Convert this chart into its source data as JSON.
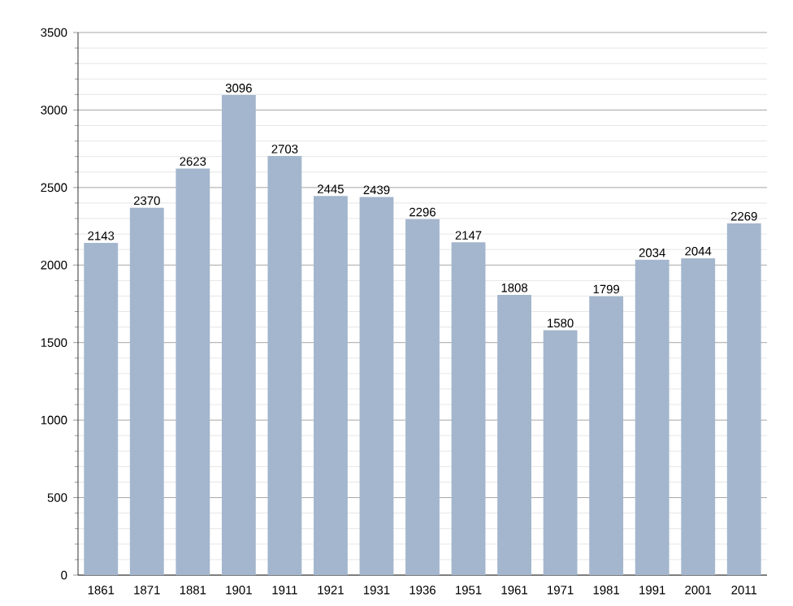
{
  "chart_data": {
    "type": "bar",
    "categories": [
      "1861",
      "1871",
      "1881",
      "1901",
      "1911",
      "1921",
      "1931",
      "1936",
      "1951",
      "1961",
      "1971",
      "1981",
      "1991",
      "2001",
      "2011"
    ],
    "values": [
      2143,
      2370,
      2623,
      3096,
      2703,
      2445,
      2439,
      2296,
      2147,
      1808,
      1580,
      1799,
      2034,
      2044,
      2269
    ],
    "color": "#a3b6cd",
    "ylim": [
      0,
      3500
    ],
    "yticks": [
      0,
      500,
      1000,
      1500,
      2000,
      2500,
      3000,
      3500
    ],
    "grid": "y",
    "data_labels": true
  }
}
